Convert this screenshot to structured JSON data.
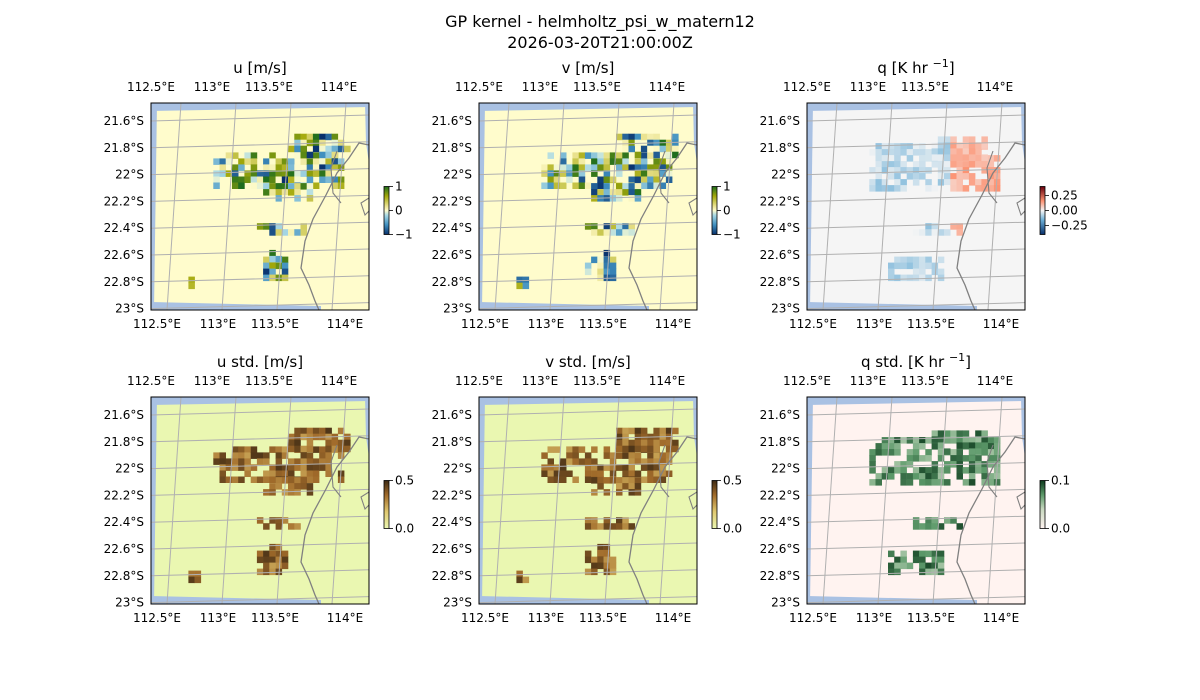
{
  "figure": {
    "title": "GP kernel - helmholtz_psi_w_matern12",
    "subtitle": "2026-03-20T21:00:00Z"
  },
  "colors": {
    "ocean": "#a9c1e3",
    "grid": "#b0b0b0",
    "coast": "#808080",
    "land_div": "#e6e0c8"
  },
  "chart_data": [
    {
      "type": "heatmap",
      "name": "u",
      "title": "u [m/s]",
      "x_ticks": [
        "112.5°E",
        "113°E",
        "113.5°E",
        "114°E"
      ],
      "y_ticks": [
        "21.6°S",
        "21.8°S",
        "22°S",
        "22.2°S",
        "22.4°S",
        "22.6°S",
        "22.8°S",
        "23°S"
      ],
      "xlim": [
        112.45,
        114.2
      ],
      "ylim": [
        -23.0,
        -21.45
      ],
      "colorbar": {
        "ticks": [
          "1",
          "0",
          "−1"
        ],
        "range": [
          -1,
          1
        ],
        "colormap": "diverging-blue-yellow-green",
        "background": "#fffccc"
      }
    },
    {
      "type": "heatmap",
      "name": "v",
      "title": "v [m/s]",
      "x_ticks": [
        "112.5°E",
        "113°E",
        "113.5°E",
        "114°E"
      ],
      "y_ticks": [
        "21.6°S",
        "21.8°S",
        "22°S",
        "22.2°S",
        "22.4°S",
        "22.6°S",
        "22.8°S",
        "23°S"
      ],
      "xlim": [
        112.45,
        114.2
      ],
      "ylim": [
        -23.0,
        -21.45
      ],
      "colorbar": {
        "ticks": [
          "1",
          "0",
          "−1"
        ],
        "range": [
          -1,
          1
        ],
        "colormap": "diverging-blue-yellow-green",
        "background": "#fffccc"
      }
    },
    {
      "type": "heatmap",
      "name": "q",
      "title": "q [K hr ",
      "title_sup": "−1",
      "title_end": "]",
      "x_ticks": [
        "112.5°E",
        "113°E",
        "113.5°E",
        "114°E"
      ],
      "y_ticks": [
        "21.6°S",
        "21.8°S",
        "22°S",
        "22.2°S",
        "22.4°S",
        "22.6°S",
        "22.8°S",
        "23°S"
      ],
      "xlim": [
        112.45,
        114.2
      ],
      "ylim": [
        -23.0,
        -21.45
      ],
      "colorbar": {
        "ticks": [
          "0.25",
          "0.00",
          "−0.25"
        ],
        "range": [
          -0.35,
          0.35
        ],
        "colormap": "diverging-blue-red",
        "background": "#f5f5f5"
      }
    },
    {
      "type": "heatmap",
      "name": "u_std",
      "title": "u std. [m/s]",
      "x_ticks": [
        "112.5°E",
        "113°E",
        "113.5°E",
        "114°E"
      ],
      "y_ticks": [
        "21.6°S",
        "21.8°S",
        "22°S",
        "22.2°S",
        "22.4°S",
        "22.6°S",
        "22.8°S",
        "23°S"
      ],
      "xlim": [
        112.45,
        114.2
      ],
      "ylim": [
        -23.0,
        -21.45
      ],
      "colorbar": {
        "ticks": [
          "0.5",
          "0.0"
        ],
        "range": [
          0,
          0.5
        ],
        "colormap": "sequential-brown",
        "background": "#eaf7b1"
      }
    },
    {
      "type": "heatmap",
      "name": "v_std",
      "title": "v std. [m/s]",
      "x_ticks": [
        "112.5°E",
        "113°E",
        "113.5°E",
        "114°E"
      ],
      "y_ticks": [
        "21.6°S",
        "21.8°S",
        "22°S",
        "22.2°S",
        "22.4°S",
        "22.6°S",
        "22.8°S",
        "23°S"
      ],
      "xlim": [
        112.45,
        114.2
      ],
      "ylim": [
        -23.0,
        -21.45
      ],
      "colorbar": {
        "ticks": [
          "0.5",
          "0.0"
        ],
        "range": [
          0,
          0.5
        ],
        "colormap": "sequential-brown",
        "background": "#eaf7b1"
      }
    },
    {
      "type": "heatmap",
      "name": "q_std",
      "title": "q std. [K hr ",
      "title_sup": "−1",
      "title_end": "]",
      "x_ticks": [
        "112.5°E",
        "113°E",
        "113.5°E",
        "114°E"
      ],
      "y_ticks": [
        "21.6°S",
        "21.8°S",
        "22°S",
        "22.2°S",
        "22.4°S",
        "22.6°S",
        "22.8°S",
        "23°S"
      ],
      "xlim": [
        112.45,
        114.2
      ],
      "ylim": [
        -23.0,
        -21.45
      ],
      "colorbar": {
        "ticks": [
          "0.1",
          "0.0"
        ],
        "range": [
          0,
          0.1
        ],
        "colormap": "sequential-green",
        "background": "#fff3f0"
      }
    }
  ]
}
